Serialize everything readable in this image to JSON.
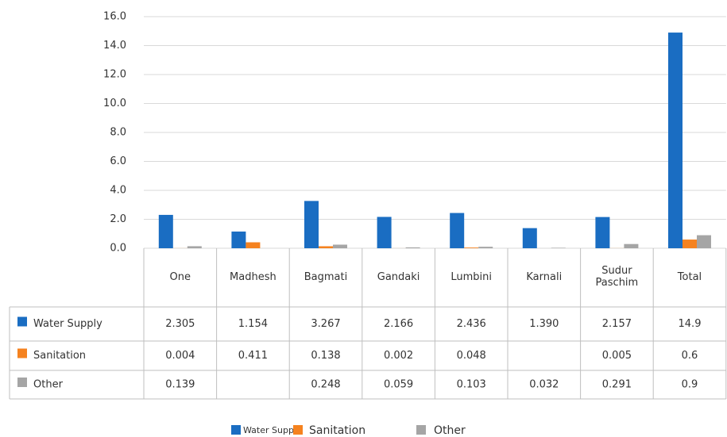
{
  "chart_data": {
    "type": "bar",
    "categories": [
      "One",
      "Madhesh",
      "Bagmati",
      "Gandaki",
      "Lumbini",
      "Karnali",
      "Sudur Paschim",
      "Total"
    ],
    "series": [
      {
        "name": "Water Supply",
        "color": "#1a6dc2",
        "values": [
          2.305,
          1.154,
          3.267,
          2.166,
          2.436,
          1.39,
          2.157,
          14.9
        ],
        "value_labels": [
          "2.305",
          "1.154",
          "3.267",
          "2.166",
          "2.436",
          "1.390",
          "2.157",
          "14.9"
        ]
      },
      {
        "name": "Sanitation",
        "color": "#f5821f",
        "values": [
          0.004,
          0.411,
          0.138,
          0.002,
          0.048,
          null,
          0.005,
          0.6
        ],
        "value_labels": [
          "0.004",
          "0.411",
          "0.138",
          "0.002",
          "0.048",
          null,
          "0.005",
          "0.6"
        ]
      },
      {
        "name": "Other",
        "color": "#a5a5a5",
        "values": [
          0.139,
          null,
          0.248,
          0.059,
          0.103,
          0.032,
          0.291,
          0.9
        ],
        "value_labels": [
          "0.139",
          null,
          "0.248",
          "0.059",
          "0.103",
          "0.032",
          "0.291",
          "0.9"
        ]
      }
    ],
    "ylim": [
      0,
      16
    ],
    "yticks": [
      {
        "value": 0,
        "label": "0.0"
      },
      {
        "value": 2,
        "label": "2.0"
      },
      {
        "value": 4,
        "label": "4.0"
      },
      {
        "value": 6,
        "label": "6.0"
      },
      {
        "value": 8,
        "label": "8.0"
      },
      {
        "value": 10,
        "label": "10.0"
      },
      {
        "value": 12,
        "label": "12.0"
      },
      {
        "value": 14,
        "label": "14.0"
      },
      {
        "value": 16,
        "label": "16.0"
      }
    ],
    "grid": true,
    "legend": "bottom"
  }
}
